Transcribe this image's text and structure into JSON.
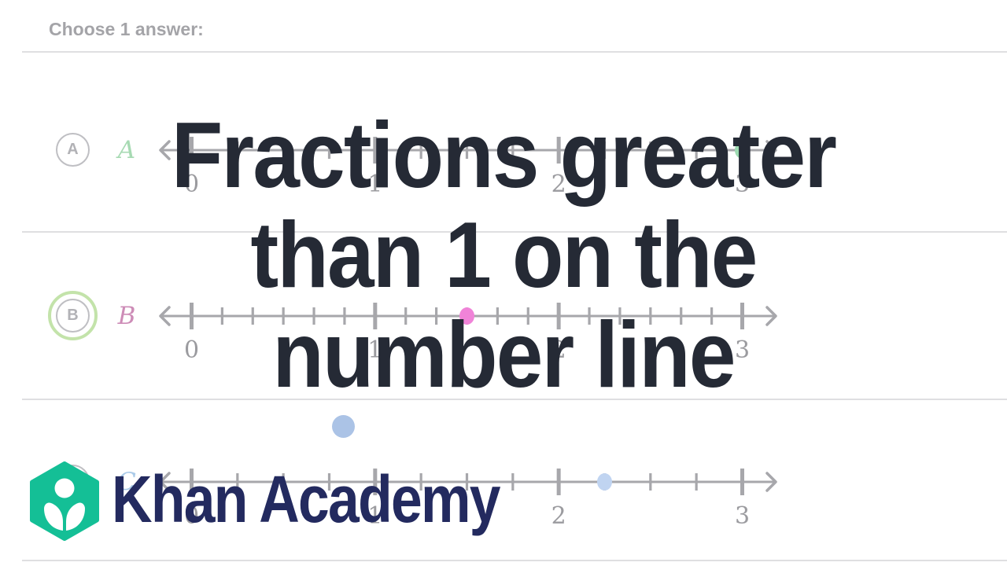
{
  "page": {
    "prompt": "Choose 1 answer:"
  },
  "title_overlay": {
    "lines": [
      "Fractions greater",
      "than 1 on the",
      "number line"
    ],
    "color": "#252a35"
  },
  "logo": {
    "brand": "Khan Academy",
    "hex_color": "#14bf96",
    "text_color": "#232a5f"
  },
  "colors": {
    "line_gray": "#a7a7ab",
    "tick_label_gray": "#9b9b9f",
    "divider": "#dfdfe1",
    "prompt_gray": "#a4a4a8",
    "badge_border": "#bfbfc3",
    "badge_letter": "#b2b2b6",
    "selected_ring_green": "#c3e3aa",
    "floating_dot_blue": "#abc3e6"
  },
  "floating_dot": {
    "color": "#abc3e6"
  },
  "choices": [
    {
      "id": "A",
      "badge": "A",
      "math_label": "A",
      "label_color": "#a7dab3",
      "selected": false,
      "line": {
        "min": 0,
        "max": 3,
        "subdivisions_per_unit": 4,
        "number_labels": [
          "0",
          "1",
          "2",
          "3"
        ]
      },
      "dot": {
        "value": 3,
        "color": "#9edbb2"
      }
    },
    {
      "id": "B",
      "badge": "B",
      "math_label": "B",
      "label_color": "#cd8cb7",
      "selected": true,
      "line": {
        "min": 0,
        "max": 3,
        "subdivisions_per_unit": 6,
        "number_labels": [
          "0",
          "1",
          "2",
          "3"
        ]
      },
      "dot": {
        "value": 1.5,
        "color": "#f083d8"
      }
    },
    {
      "id": "C",
      "badge": "C",
      "math_label": "C",
      "label_color": "#abcbe9",
      "selected": false,
      "line": {
        "min": 0,
        "max": 3,
        "subdivisions_per_unit": 4,
        "number_labels": [
          "0",
          "1",
          "2",
          "3"
        ]
      },
      "dot": {
        "value": 2.25,
        "color": "#c0d4f1"
      }
    }
  ],
  "chart_data": [
    {
      "type": "number_line",
      "option": "A",
      "range": [
        0,
        3
      ],
      "tick_step": 0.25,
      "labeled_ticks": [
        0,
        1,
        2,
        3
      ],
      "point_value": 3,
      "point_color": "#9edbb2"
    },
    {
      "type": "number_line",
      "option": "B",
      "range": [
        0,
        3
      ],
      "tick_step": 0.1667,
      "labeled_ticks": [
        0,
        1,
        2,
        3
      ],
      "point_value": 1.5,
      "point_color": "#f083d8"
    },
    {
      "type": "number_line",
      "option": "C",
      "range": [
        0,
        3
      ],
      "tick_step": 0.25,
      "labeled_ticks": [
        0,
        1,
        2,
        3
      ],
      "point_value": 2.25,
      "point_color": "#c0d4f1"
    }
  ]
}
